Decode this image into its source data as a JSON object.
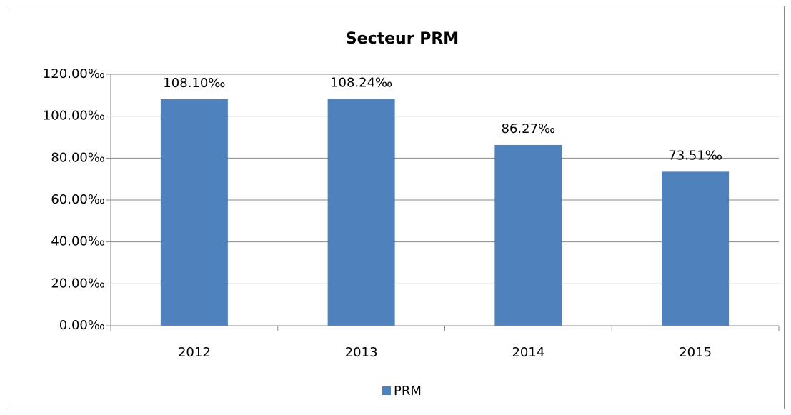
{
  "chart_data": {
    "type": "bar",
    "title": "Secteur PRM",
    "categories": [
      "2012",
      "2013",
      "2014",
      "2015"
    ],
    "series": [
      {
        "name": "PRM",
        "color": "#4f81bd",
        "values": [
          108.1,
          108.24,
          86.27,
          73.51
        ],
        "value_labels": [
          "108.10‰",
          "108.24‰",
          "86.27‰",
          "73.51‰"
        ]
      }
    ],
    "ylim": [
      0,
      120
    ],
    "yticks": [
      {
        "value": 0,
        "label": "0.00‰"
      },
      {
        "value": 20,
        "label": "20.00‰"
      },
      {
        "value": 40,
        "label": "40.00‰"
      },
      {
        "value": 60,
        "label": "60.00‰"
      },
      {
        "value": 80,
        "label": "80.00‰"
      },
      {
        "value": 100,
        "label": "100.00‰"
      },
      {
        "value": 120,
        "label": "120.00‰"
      }
    ],
    "grid": true,
    "legend": "bottom"
  }
}
